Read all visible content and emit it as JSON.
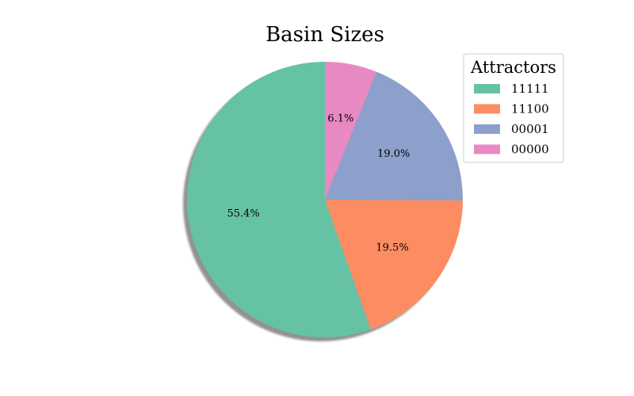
{
  "chart_data": {
    "type": "pie",
    "title": "Basin Sizes",
    "legend": {
      "title": "Attractors",
      "placement": "top-right"
    },
    "slices": [
      {
        "label": "11111",
        "value": 55.4,
        "pct_label": "55.4%",
        "color": "#66c2a5"
      },
      {
        "label": "11100",
        "value": 19.5,
        "pct_label": "19.5%",
        "color": "#fc8d62"
      },
      {
        "label": "00001",
        "value": 19.0,
        "pct_label": "19.0%",
        "color": "#8da0cb"
      },
      {
        "label": "00000",
        "value": 6.1,
        "pct_label": "6.1%",
        "color": "#e78ac3"
      }
    ],
    "start_angle_deg": 90,
    "counterclockwise": true,
    "shadow": true
  }
}
